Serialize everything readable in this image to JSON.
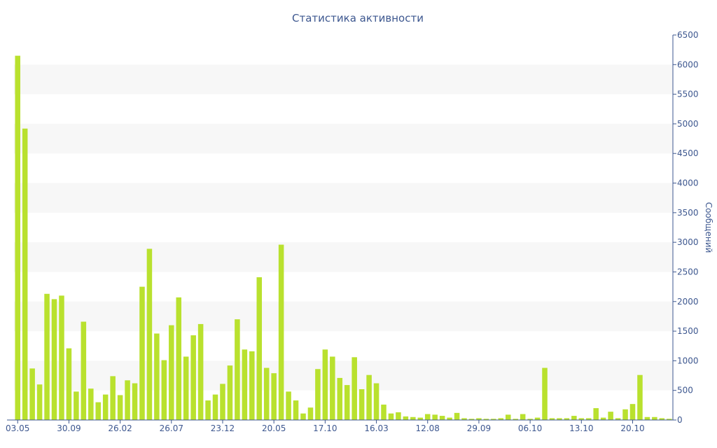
{
  "chart_data": {
    "type": "bar",
    "title": "Статистика активности",
    "ylabel": "Сообщений",
    "xlabel": "",
    "ylim": [
      0,
      6500
    ],
    "y_ticks": [
      0,
      500,
      1000,
      1500,
      2000,
      2500,
      3000,
      3500,
      4000,
      4500,
      5000,
      5500,
      6000,
      6500
    ],
    "y_axis_side": "right",
    "grid": "alternating horizontal bands",
    "legend": "none",
    "bar_color": "#b9e12e",
    "x_tick_labels": [
      {
        "index": 0,
        "label": "03.05"
      },
      {
        "index": 7,
        "label": "30.09"
      },
      {
        "index": 14,
        "label": "26.02"
      },
      {
        "index": 21,
        "label": "26.07"
      },
      {
        "index": 28,
        "label": "23.12"
      },
      {
        "index": 35,
        "label": "20.05"
      },
      {
        "index": 42,
        "label": "17.10"
      },
      {
        "index": 49,
        "label": "16.03"
      },
      {
        "index": 56,
        "label": "12.08"
      },
      {
        "index": 63,
        "label": "29.09"
      },
      {
        "index": 70,
        "label": "06.10"
      },
      {
        "index": 77,
        "label": "13.10"
      },
      {
        "index": 84,
        "label": "20.10"
      }
    ],
    "values": [
      6150,
      4920,
      870,
      600,
      2130,
      2040,
      2100,
      1210,
      480,
      1660,
      530,
      300,
      430,
      740,
      420,
      670,
      620,
      2250,
      2890,
      1460,
      1010,
      1600,
      2070,
      1070,
      1430,
      1620,
      330,
      430,
      610,
      920,
      1700,
      1190,
      1160,
      2410,
      880,
      790,
      2960,
      480,
      330,
      110,
      210,
      860,
      1190,
      1070,
      710,
      590,
      1060,
      520,
      760,
      620,
      260,
      110,
      130,
      60,
      50,
      40,
      100,
      90,
      70,
      40,
      120,
      30,
      20,
      30,
      20,
      20,
      30,
      90,
      20,
      100,
      20,
      40,
      880,
      30,
      30,
      30,
      70,
      30,
      30,
      200,
      40,
      140,
      30,
      180,
      270,
      760,
      50,
      50,
      30,
      20
    ]
  }
}
